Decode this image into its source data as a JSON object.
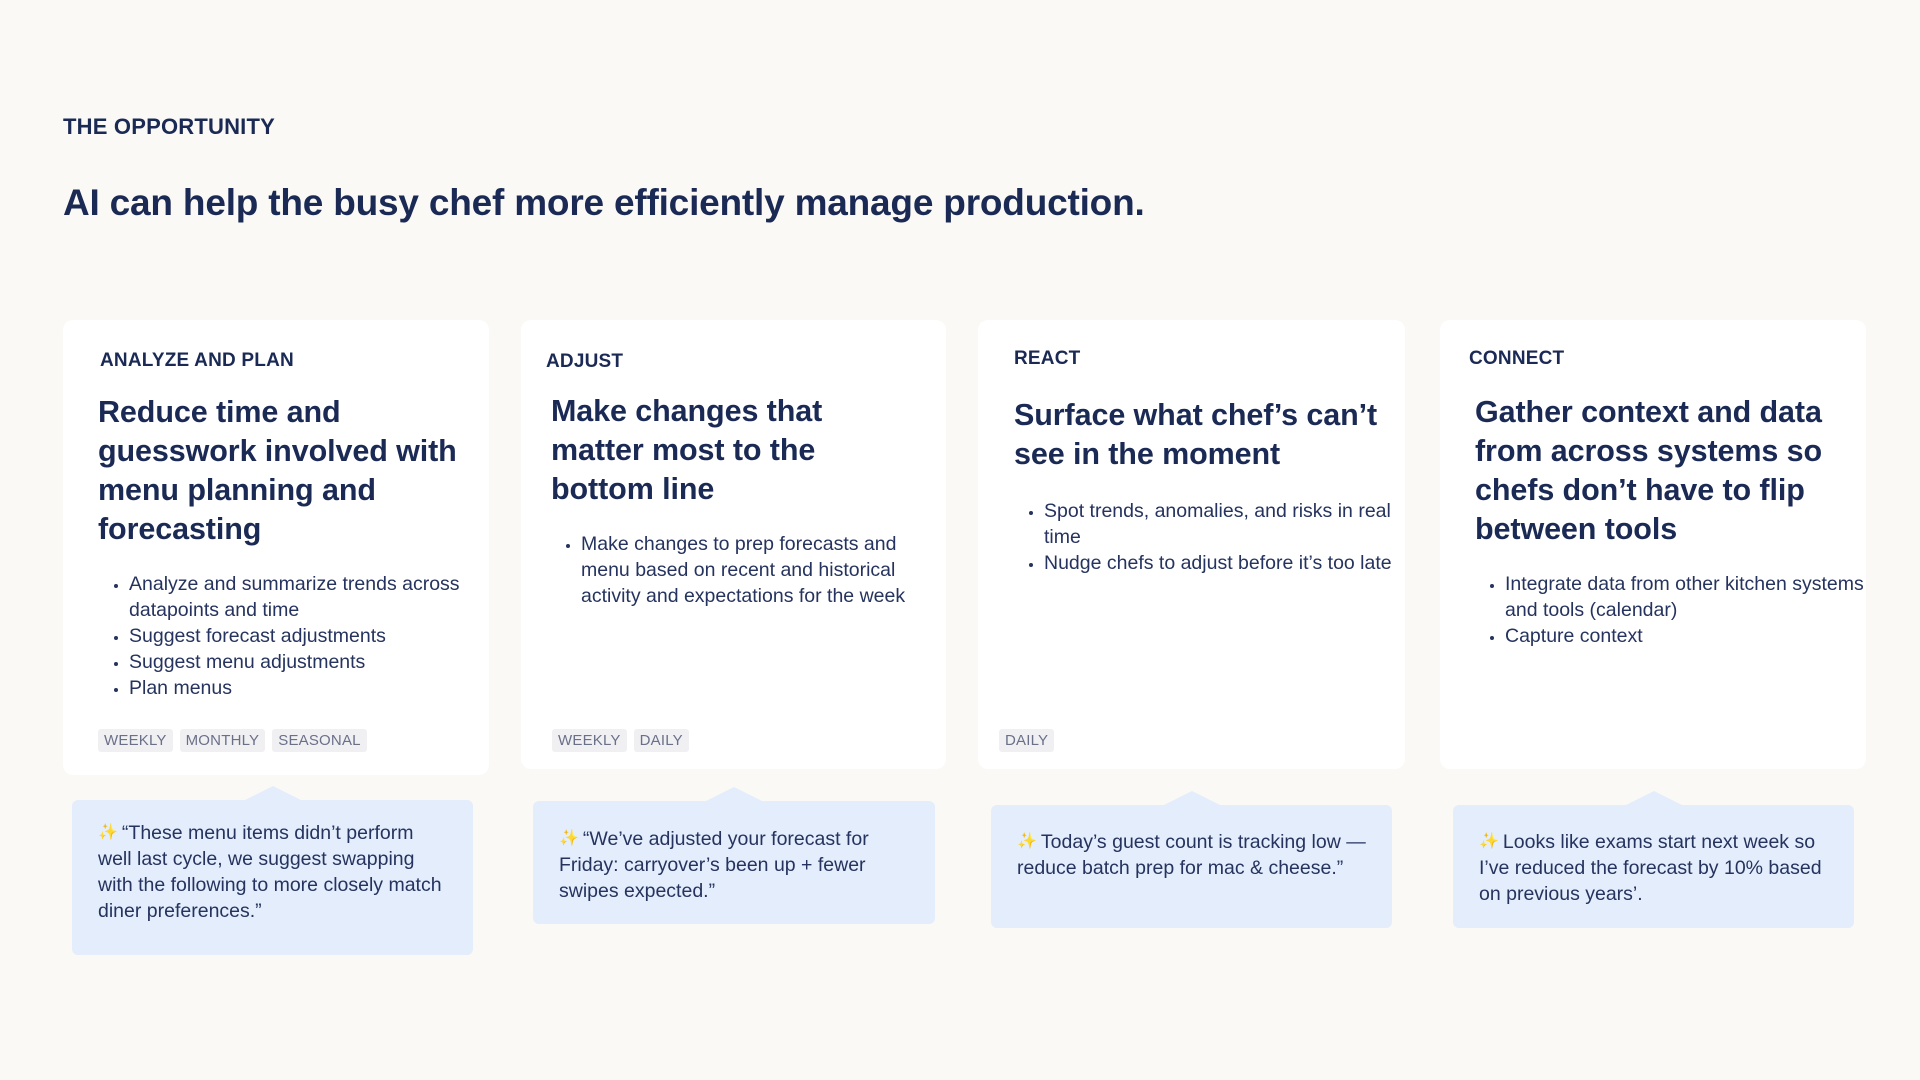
{
  "eyebrow": "THE OPPORTUNITY",
  "headline": "AI can help the busy chef more efficiently manage production.",
  "cards": [
    {
      "label": "ANALYZE AND PLAN",
      "title": "Reduce time and guesswork involved with menu planning and forecasting",
      "bullets": [
        "Analyze and summarize trends across datapoints and time",
        "Suggest forecast adjustments",
        "Suggest menu adjustments",
        "Plan menus"
      ],
      "tags": [
        "WEEKLY",
        "MONTHLY",
        "SEASONAL"
      ],
      "suggestion": "“These menu items didn’t perform well last cycle, we suggest swapping with the following to more closely match diner preferences.”"
    },
    {
      "label": "ADJUST",
      "title": "Make changes that matter most to the bottom line",
      "bullets": [
        "Make changes to prep forecasts and menu based on recent and historical activity and expectations for the week"
      ],
      "tags": [
        "WEEKLY",
        "DAILY"
      ],
      "suggestion": "“We’ve adjusted your forecast for Friday: carryover’s been up + fewer swipes expected.”"
    },
    {
      "label": "REACT",
      "title": "Surface what chef’s can’t see in the moment",
      "bullets": [
        "Spot trends, anomalies, and risks in real time",
        "Nudge chefs to adjust before it’s too late"
      ],
      "tags": [
        "DAILY"
      ],
      "suggestion": "Today’s guest count is tracking low — reduce batch prep for mac & cheese.”"
    },
    {
      "label": "CONNECT",
      "title": "Gather context and data from across systems so chefs don’t have to flip between tools",
      "bullets": [
        "Integrate data from other kitchen systems and tools (calendar)",
        "Capture context"
      ],
      "tags": [],
      "suggestion": "Looks like exams start next week so I’ve reduced the forecast by 10% based on previous years’."
    }
  ],
  "sparkle_icon": "sparkles-icon",
  "colors": {
    "background": "#faf9f5",
    "text": "#1b2a55",
    "bubble": "#e3edfc",
    "card": "#ffffff"
  }
}
